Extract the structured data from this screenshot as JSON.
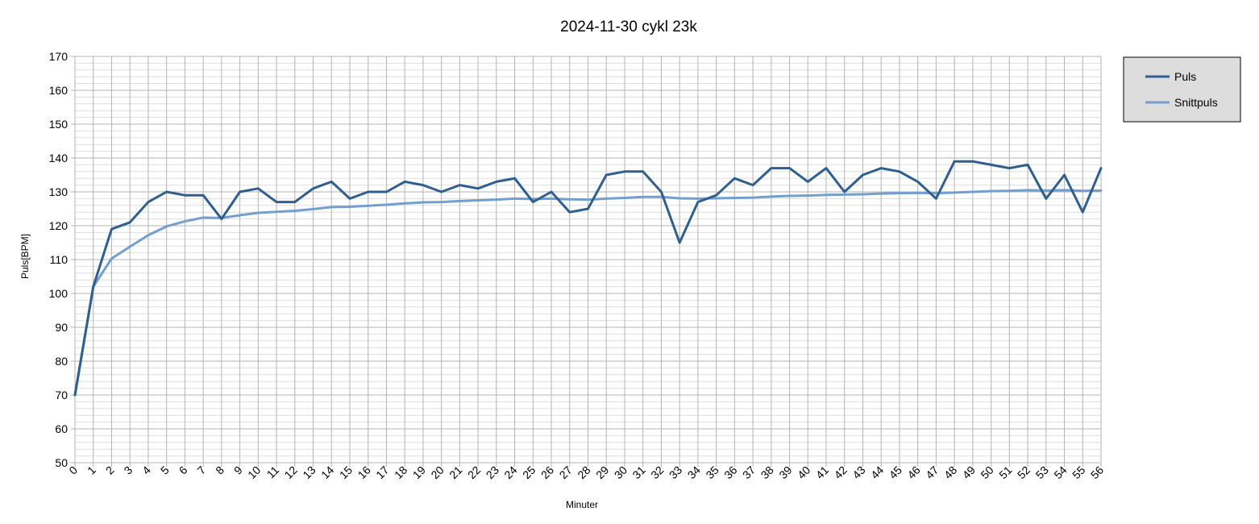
{
  "chart_data": {
    "type": "line",
    "title": "2024-11-30 cykl 23k",
    "xlabel": "Minuter",
    "ylabel": "Puls[BPM]",
    "x": [
      0,
      1,
      2,
      3,
      4,
      5,
      6,
      7,
      8,
      9,
      10,
      11,
      12,
      13,
      14,
      15,
      16,
      17,
      18,
      19,
      20,
      21,
      22,
      23,
      24,
      25,
      26,
      27,
      28,
      29,
      30,
      31,
      32,
      33,
      34,
      35,
      36,
      37,
      38,
      39,
      40,
      41,
      42,
      43,
      44,
      45,
      46,
      47,
      48,
      49,
      50,
      51,
      52,
      53,
      54,
      55,
      56
    ],
    "xlim": [
      0,
      56
    ],
    "ylim": [
      50,
      170
    ],
    "yticks": [
      50,
      60,
      70,
      80,
      90,
      100,
      110,
      120,
      130,
      140,
      150,
      160,
      170
    ],
    "grid": true,
    "minor_grid": true,
    "legend_position": "top-right",
    "series": [
      {
        "name": "Puls",
        "color": "#2f5f8f",
        "values": [
          70,
          102,
          119,
          121,
          127,
          130,
          129,
          129,
          122,
          130,
          131,
          127,
          127,
          131,
          133,
          128,
          130,
          130,
          133,
          132,
          130,
          132,
          131,
          133,
          134,
          127,
          130,
          124,
          125,
          135,
          136,
          136,
          130,
          115,
          127,
          129,
          134,
          132,
          137,
          137,
          133,
          137,
          130,
          135,
          137,
          136,
          133,
          128,
          139,
          139,
          138,
          137,
          138,
          128,
          135,
          124,
          137
        ]
      },
      {
        "name": "Snittpuls",
        "color": "#729fcf",
        "values": [
          70,
          102,
          110.3,
          113.8,
          117.2,
          119.8,
          121.3,
          122.4,
          122.3,
          123.1,
          123.8,
          124.1,
          124.4,
          124.9,
          125.5,
          125.6,
          125.9,
          126.2,
          126.6,
          126.9,
          127.0,
          127.3,
          127.5,
          127.7,
          128.0,
          127.9,
          128.0,
          127.8,
          127.7,
          128.0,
          128.2,
          128.5,
          128.5,
          128.1,
          128.0,
          128.1,
          128.2,
          128.3,
          128.6,
          128.8,
          128.9,
          129.1,
          129.2,
          129.3,
          129.5,
          129.6,
          129.7,
          129.6,
          129.8,
          130.0,
          130.2,
          130.3,
          130.5,
          130.4,
          130.5,
          130.3,
          130.4
        ]
      }
    ]
  }
}
